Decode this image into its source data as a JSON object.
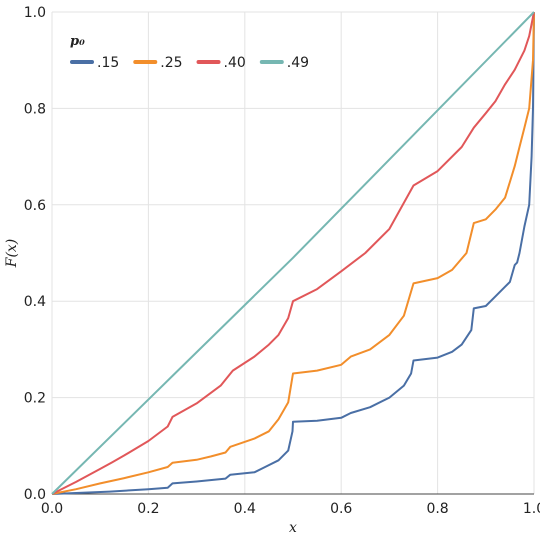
{
  "chart_data": {
    "type": "line",
    "title": "",
    "xlabel": "x",
    "ylabel": "F(x)",
    "xlim": [
      0,
      1
    ],
    "ylim": [
      0,
      1
    ],
    "grid": true,
    "legend_placement": "top-left",
    "legend_title": "p₀",
    "xticks": [
      0,
      0.2,
      0.4,
      0.6,
      0.8,
      1
    ],
    "xtick_labels": [
      "0.0",
      "0.2",
      "0.4",
      "0.6",
      "0.8",
      "1.0"
    ],
    "yticks": [
      0,
      0.2,
      0.4,
      0.6,
      0.8,
      1
    ],
    "ytick_labels": [
      "0.0",
      "0.2",
      "0.4",
      "0.6",
      "0.8",
      "1.0"
    ],
    "series": [
      {
        "name": ".15",
        "color": "#4a6fa5",
        "points": [
          [
            0,
            0
          ],
          [
            0.05,
            0.002
          ],
          [
            0.12,
            0.005
          ],
          [
            0.2,
            0.01
          ],
          [
            0.24,
            0.013
          ],
          [
            0.25,
            0.022
          ],
          [
            0.3,
            0.026
          ],
          [
            0.36,
            0.032
          ],
          [
            0.37,
            0.04
          ],
          [
            0.42,
            0.045
          ],
          [
            0.44,
            0.055
          ],
          [
            0.47,
            0.07
          ],
          [
            0.49,
            0.09
          ],
          [
            0.499,
            0.13
          ],
          [
            0.5,
            0.15
          ],
          [
            0.55,
            0.152
          ],
          [
            0.6,
            0.158
          ],
          [
            0.62,
            0.168
          ],
          [
            0.66,
            0.18
          ],
          [
            0.7,
            0.2
          ],
          [
            0.73,
            0.225
          ],
          [
            0.745,
            0.25
          ],
          [
            0.75,
            0.277
          ],
          [
            0.8,
            0.283
          ],
          [
            0.83,
            0.295
          ],
          [
            0.85,
            0.31
          ],
          [
            0.87,
            0.34
          ],
          [
            0.875,
            0.385
          ],
          [
            0.9,
            0.39
          ],
          [
            0.92,
            0.41
          ],
          [
            0.94,
            0.43
          ],
          [
            0.95,
            0.44
          ],
          [
            0.96,
            0.475
          ],
          [
            0.965,
            0.48
          ],
          [
            0.97,
            0.5
          ],
          [
            0.98,
            0.555
          ],
          [
            0.99,
            0.6
          ],
          [
            0.995,
            0.7
          ],
          [
            0.998,
            0.8
          ],
          [
            1,
            1
          ]
        ]
      },
      {
        "name": ".25",
        "color": "#f28e2b",
        "points": [
          [
            0,
            0
          ],
          [
            0.05,
            0.01
          ],
          [
            0.1,
            0.022
          ],
          [
            0.15,
            0.033
          ],
          [
            0.2,
            0.045
          ],
          [
            0.24,
            0.056
          ],
          [
            0.25,
            0.065
          ],
          [
            0.3,
            0.071
          ],
          [
            0.33,
            0.078
          ],
          [
            0.36,
            0.086
          ],
          [
            0.37,
            0.098
          ],
          [
            0.42,
            0.115
          ],
          [
            0.45,
            0.13
          ],
          [
            0.47,
            0.155
          ],
          [
            0.49,
            0.19
          ],
          [
            0.5,
            0.25
          ],
          [
            0.55,
            0.256
          ],
          [
            0.6,
            0.268
          ],
          [
            0.62,
            0.285
          ],
          [
            0.66,
            0.3
          ],
          [
            0.7,
            0.33
          ],
          [
            0.73,
            0.37
          ],
          [
            0.75,
            0.437
          ],
          [
            0.8,
            0.448
          ],
          [
            0.83,
            0.465
          ],
          [
            0.86,
            0.5
          ],
          [
            0.875,
            0.562
          ],
          [
            0.9,
            0.57
          ],
          [
            0.92,
            0.59
          ],
          [
            0.94,
            0.615
          ],
          [
            0.96,
            0.68
          ],
          [
            0.97,
            0.72
          ],
          [
            0.98,
            0.76
          ],
          [
            0.99,
            0.8
          ],
          [
            0.998,
            0.9
          ],
          [
            1,
            1
          ]
        ]
      },
      {
        "name": ".40",
        "color": "#e15759",
        "points": [
          [
            0,
            0
          ],
          [
            0.05,
            0.025
          ],
          [
            0.1,
            0.052
          ],
          [
            0.125,
            0.066
          ],
          [
            0.15,
            0.08
          ],
          [
            0.2,
            0.11
          ],
          [
            0.24,
            0.14
          ],
          [
            0.25,
            0.16
          ],
          [
            0.3,
            0.188
          ],
          [
            0.35,
            0.225
          ],
          [
            0.375,
            0.256
          ],
          [
            0.42,
            0.285
          ],
          [
            0.45,
            0.31
          ],
          [
            0.47,
            0.33
          ],
          [
            0.49,
            0.365
          ],
          [
            0.5,
            0.4
          ],
          [
            0.55,
            0.425
          ],
          [
            0.6,
            0.462
          ],
          [
            0.65,
            0.5
          ],
          [
            0.7,
            0.55
          ],
          [
            0.75,
            0.64
          ],
          [
            0.8,
            0.67
          ],
          [
            0.85,
            0.72
          ],
          [
            0.875,
            0.76
          ],
          [
            0.9,
            0.79
          ],
          [
            0.92,
            0.815
          ],
          [
            0.94,
            0.85
          ],
          [
            0.96,
            0.88
          ],
          [
            0.98,
            0.92
          ],
          [
            0.99,
            0.95
          ],
          [
            1,
            1
          ]
        ]
      },
      {
        "name": ".49",
        "color": "#76b7b2",
        "points": [
          [
            0,
            0
          ],
          [
            0.25,
            0.245
          ],
          [
            0.5,
            0.49
          ],
          [
            0.75,
            0.745
          ],
          [
            1,
            1
          ]
        ]
      }
    ]
  }
}
